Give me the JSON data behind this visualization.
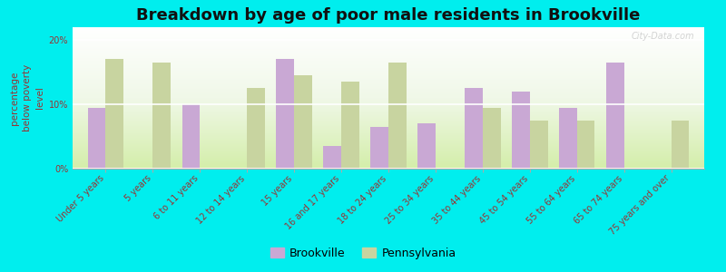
{
  "title": "Breakdown by age of poor male residents in Brookville",
  "ylabel": "percentage\nbelow poverty\nlevel",
  "categories": [
    "Under 5 years",
    "5 years",
    "6 to 11 years",
    "12 to 14 years",
    "15 years",
    "16 and 17 years",
    "18 to 24 years",
    "25 to 34 years",
    "35 to 44 years",
    "45 to 54 years",
    "55 to 64 years",
    "65 to 74 years",
    "75 years and over"
  ],
  "brookville": [
    9.5,
    0,
    10.0,
    0,
    17.0,
    3.5,
    6.5,
    7.0,
    12.5,
    12.0,
    9.5,
    16.5,
    0
  ],
  "pennsylvania": [
    17.0,
    16.5,
    0,
    12.5,
    14.5,
    13.5,
    16.5,
    0,
    9.5,
    7.5,
    7.5,
    0,
    7.5
  ],
  "brookville_color": "#c9a8d4",
  "pennsylvania_color": "#c8d4a0",
  "bg_outer": "#00eeee",
  "ylim": [
    0,
    22
  ],
  "yticks": [
    0,
    10,
    20
  ],
  "ytick_labels": [
    "0%",
    "10%",
    "20%"
  ],
  "title_fontsize": 13,
  "tick_fontsize": 7,
  "legend_fontsize": 9,
  "bar_width": 0.38
}
